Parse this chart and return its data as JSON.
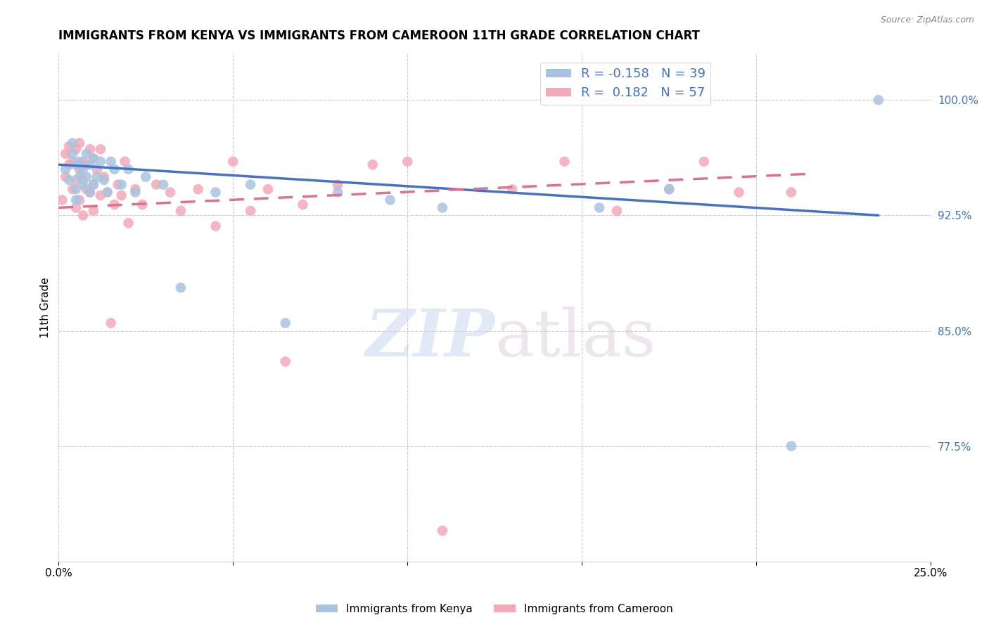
{
  "title": "IMMIGRANTS FROM KENYA VS IMMIGRANTS FROM CAMEROON 11TH GRADE CORRELATION CHART",
  "source": "Source: ZipAtlas.com",
  "ylabel": "11th Grade",
  "xlim": [
    0.0,
    0.25
  ],
  "ylim": [
    0.7,
    1.03
  ],
  "x_ticks": [
    0.0,
    0.05,
    0.1,
    0.15,
    0.2,
    0.25
  ],
  "x_tick_labels": [
    "0.0%",
    "",
    "",
    "",
    "",
    "25.0%"
  ],
  "y_tick_labels_right": [
    "100.0%",
    "92.5%",
    "85.0%",
    "77.5%"
  ],
  "y_tick_vals_right": [
    1.0,
    0.925,
    0.85,
    0.775
  ],
  "legend_r_kenya": "-0.158",
  "legend_n_kenya": "39",
  "legend_r_cameroon": "0.182",
  "legend_n_cameroon": "57",
  "kenya_color": "#a8c4e0",
  "cameroon_color": "#f4a8b8",
  "kenya_line_color": "#4472c4",
  "cameroon_line_color": "#e07090",
  "watermark_zip": "ZIP",
  "watermark_atlas": "atlas",
  "background_color": "#ffffff",
  "kenya_scatter_x": [
    0.002,
    0.003,
    0.004,
    0.004,
    0.005,
    0.005,
    0.005,
    0.006,
    0.006,
    0.007,
    0.007,
    0.008,
    0.008,
    0.009,
    0.009,
    0.01,
    0.01,
    0.011,
    0.012,
    0.013,
    0.014,
    0.015,
    0.016,
    0.018,
    0.02,
    0.022,
    0.025,
    0.03,
    0.035,
    0.045,
    0.055,
    0.065,
    0.08,
    0.095,
    0.11,
    0.155,
    0.175,
    0.21,
    0.235
  ],
  "kenya_scatter_y": [
    0.955,
    0.948,
    0.972,
    0.965,
    0.958,
    0.942,
    0.935,
    0.96,
    0.95,
    0.955,
    0.945,
    0.965,
    0.95,
    0.958,
    0.94,
    0.962,
    0.945,
    0.95,
    0.96,
    0.948,
    0.94,
    0.96,
    0.955,
    0.945,
    0.955,
    0.94,
    0.95,
    0.945,
    0.878,
    0.94,
    0.945,
    0.855,
    0.94,
    0.935,
    0.93,
    0.93,
    0.942,
    0.775,
    1.0
  ],
  "cameroon_scatter_x": [
    0.001,
    0.002,
    0.002,
    0.003,
    0.003,
    0.004,
    0.004,
    0.005,
    0.005,
    0.005,
    0.006,
    0.006,
    0.006,
    0.007,
    0.007,
    0.007,
    0.008,
    0.008,
    0.009,
    0.009,
    0.01,
    0.01,
    0.01,
    0.011,
    0.012,
    0.012,
    0.013,
    0.014,
    0.015,
    0.016,
    0.017,
    0.018,
    0.019,
    0.02,
    0.022,
    0.024,
    0.028,
    0.032,
    0.035,
    0.04,
    0.045,
    0.05,
    0.055,
    0.06,
    0.065,
    0.07,
    0.08,
    0.09,
    0.1,
    0.11,
    0.13,
    0.145,
    0.16,
    0.175,
    0.185,
    0.195,
    0.21
  ],
  "cameroon_scatter_y": [
    0.935,
    0.965,
    0.95,
    0.97,
    0.958,
    0.942,
    0.96,
    0.968,
    0.948,
    0.93,
    0.972,
    0.955,
    0.935,
    0.96,
    0.948,
    0.925,
    0.958,
    0.942,
    0.968,
    0.94,
    0.962,
    0.945,
    0.928,
    0.955,
    0.968,
    0.938,
    0.95,
    0.94,
    0.855,
    0.932,
    0.945,
    0.938,
    0.96,
    0.92,
    0.942,
    0.932,
    0.945,
    0.94,
    0.928,
    0.942,
    0.918,
    0.96,
    0.928,
    0.942,
    0.83,
    0.932,
    0.945,
    0.958,
    0.96,
    0.72,
    0.942,
    0.96,
    0.928,
    0.942,
    0.96,
    0.94,
    0.94
  ]
}
